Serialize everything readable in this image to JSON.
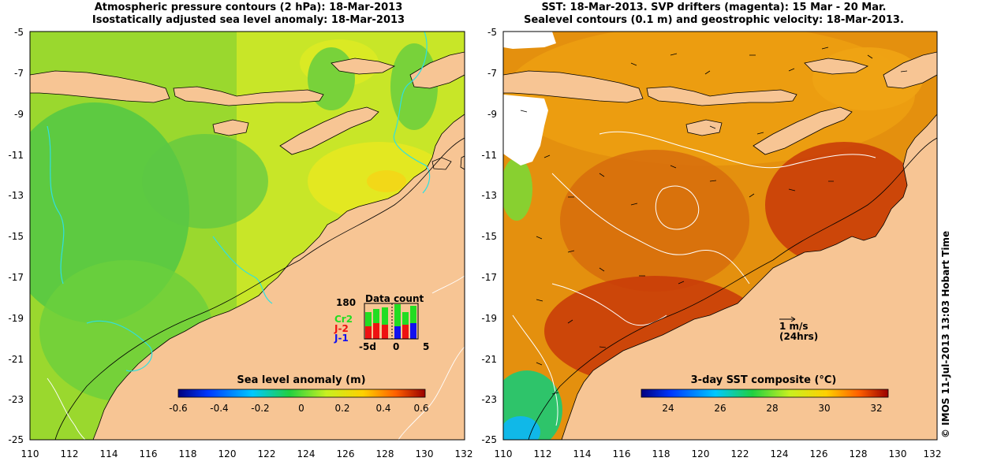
{
  "left_panel": {
    "title_line1": "Atmospheric pressure contours (2 hPa): 18-Mar-2013",
    "title_line2": "Isostatically adjusted sea level anomaly: 18-Mar-2013",
    "colorbar": {
      "label": "Sea level anomaly (m)",
      "ticks": [
        "-0.6",
        "-0.4",
        "-0.2",
        "0",
        "0.2",
        "0.4",
        "0.6"
      ],
      "min": -0.6,
      "max": 0.6
    },
    "data_count": {
      "title": "Data count",
      "max_label": "180",
      "missions": [
        {
          "name": "Cr2",
          "color": "#22dd22"
        },
        {
          "name": "J-2",
          "color": "#ee1111"
        },
        {
          "name": "J-1",
          "color": "#1111ee"
        }
      ],
      "xticks": [
        "-5d",
        "0",
        "5"
      ]
    }
  },
  "right_panel": {
    "title_line1": "SST: 18-Mar-2013. SVP drifters (magenta): 15 Mar - 20 Mar.",
    "title_line2": "Sealevel contours (0.1 m) and geostrophic velocity: 18-Mar-2013.",
    "scale_label1": "1 m/s",
    "scale_label2": "(24hrs)",
    "colorbar": {
      "label": "3-day SST composite (°C)",
      "ticks": [
        "24",
        "26",
        "28",
        "30",
        "32"
      ],
      "min": 23,
      "max": 32.5
    }
  },
  "axes": {
    "lat_labels": [
      "-5",
      "-7",
      "-9",
      "-11",
      "-13",
      "-15",
      "-17",
      "-19",
      "-21",
      "-23",
      "-25"
    ],
    "lon_labels": [
      "110",
      "112",
      "114",
      "116",
      "118",
      "120",
      "122",
      "124",
      "126",
      "128",
      "130",
      "132"
    ]
  },
  "colors": {
    "land": "#f7c594",
    "ocean_green": "#7fd63a",
    "ocean_yellow": "#d8ec2a",
    "sst_orange": "#e88a10",
    "sst_dark": "#c02a00"
  },
  "credit": "© IMOS 11-Jul-2013 13:03 Hobart Time"
}
